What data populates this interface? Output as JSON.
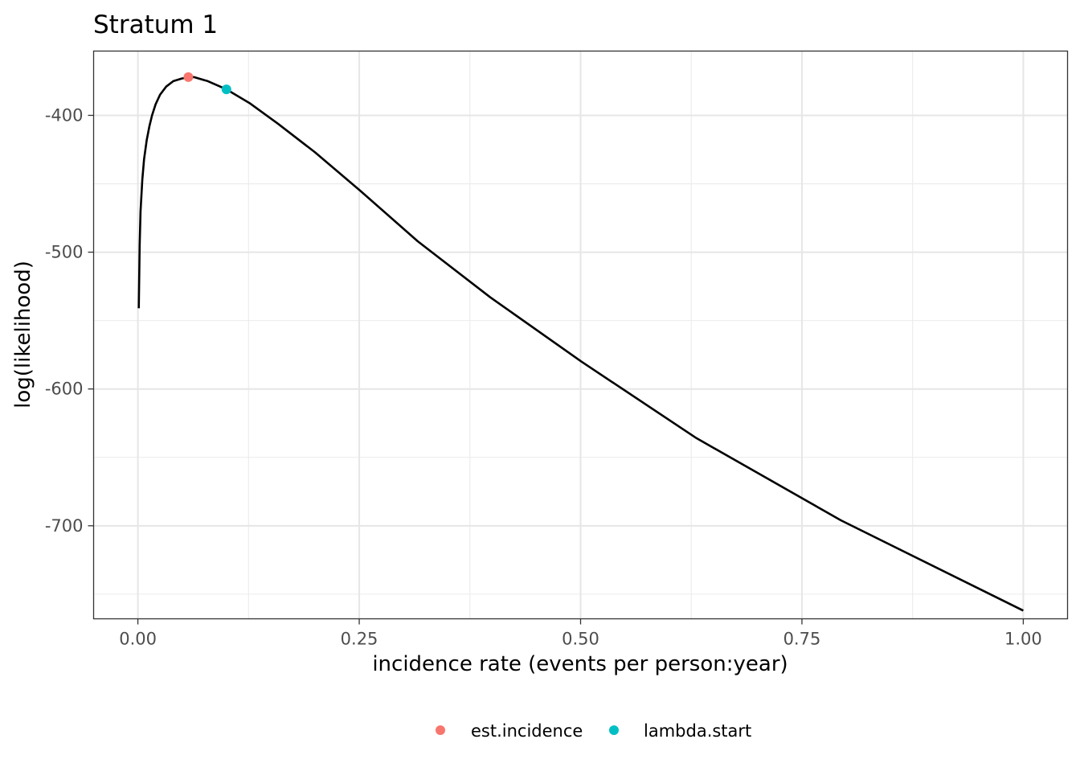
{
  "chart_data": {
    "type": "line",
    "title": "Stratum 1",
    "xlabel": "incidence rate (events per person:year)",
    "ylabel": "log(likelihood)",
    "xlim": [
      -0.05,
      1.05
    ],
    "ylim": [
      -768,
      -353
    ],
    "x_ticks": [
      {
        "value": 0.0,
        "label": "0.00"
      },
      {
        "value": 0.25,
        "label": "0.25"
      },
      {
        "value": 0.5,
        "label": "0.50"
      },
      {
        "value": 0.75,
        "label": "0.75"
      },
      {
        "value": 1.0,
        "label": "1.00"
      }
    ],
    "y_ticks": [
      {
        "value": -400,
        "label": "-400"
      },
      {
        "value": -500,
        "label": "-500"
      },
      {
        "value": -600,
        "label": "-600"
      },
      {
        "value": -700,
        "label": "-700"
      }
    ],
    "x_minor": [
      0.125,
      0.375,
      0.625,
      0.875
    ],
    "y_minor": [
      -450,
      -550,
      -650,
      -750
    ],
    "grid": true,
    "series": [
      {
        "x": [
          0.001,
          0.002,
          0.003,
          0.005,
          0.007,
          0.01,
          0.013,
          0.016,
          0.02,
          0.025,
          0.032,
          0.04,
          0.05,
          0.063,
          0.079,
          0.1,
          0.126,
          0.158,
          0.2,
          0.251,
          0.316,
          0.398,
          0.501,
          0.631,
          0.794,
          1.0
        ],
        "y": [
          -541,
          -495,
          -470,
          -447,
          -432,
          -418,
          -408,
          -400,
          -392,
          -385,
          -379,
          -375,
          -373,
          -372,
          -375,
          -381,
          -391,
          -406,
          -427,
          -455,
          -492,
          -533,
          -580,
          -636,
          -696,
          -762
        ],
        "color": "#000000"
      }
    ],
    "points": [
      {
        "name": "est.incidence",
        "x": 0.057,
        "y": -372,
        "color": "#F8766D"
      },
      {
        "name": "lambda.start",
        "x": 0.1,
        "y": -381,
        "color": "#00BFC4"
      }
    ],
    "legend": {
      "position": "bottom",
      "entries": [
        {
          "label": "est.incidence",
          "color": "#F8766D"
        },
        {
          "label": "lambda.start",
          "color": "#00BFC4"
        }
      ]
    }
  }
}
